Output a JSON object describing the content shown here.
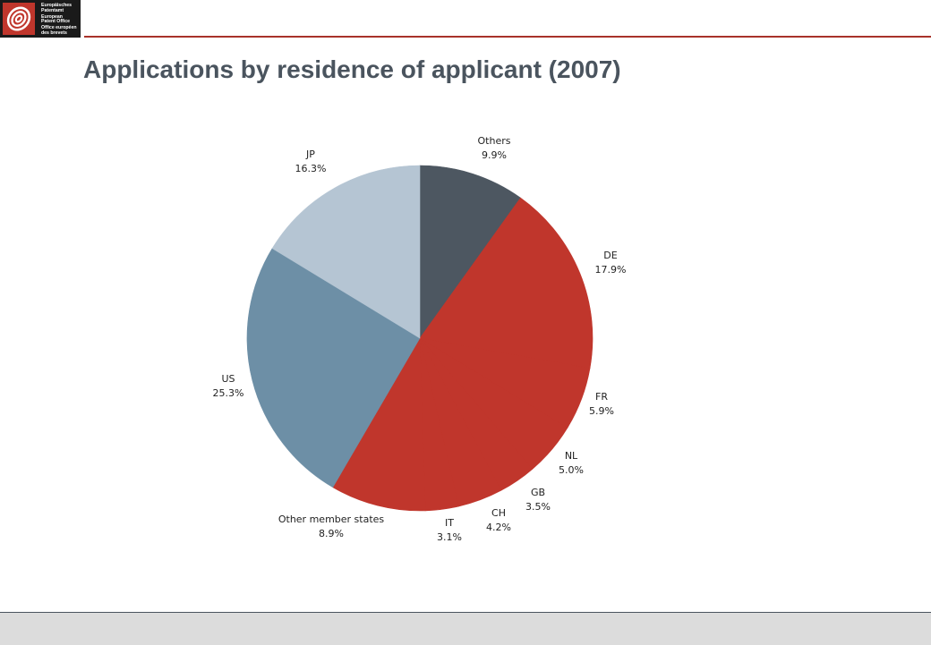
{
  "logo": {
    "text_lines": [
      "Europäisches",
      "Patentamt",
      "European",
      "Patent Office",
      "Office européen",
      "des brevets"
    ],
    "background": "#1a1a1a",
    "icon": "epo-swirl-icon"
  },
  "accent_color": "#a8322a",
  "title": "Applications by residence of applicant (2007)",
  "chart_data": {
    "type": "pie",
    "title": "Applications by residence of applicant (2007)",
    "unit": "%",
    "start": "12 o'clock",
    "direction": "clockwise",
    "slices": [
      {
        "label": "Others",
        "value": 9.9,
        "value_label": "9.9%",
        "color": "#4d5761"
      },
      {
        "label": "DE",
        "value": 17.9,
        "value_label": "17.9%",
        "color": "#c0362c"
      },
      {
        "label": "FR",
        "value": 5.9,
        "value_label": "5.9%",
        "color": "#c0362c"
      },
      {
        "label": "NL",
        "value": 5.0,
        "value_label": "5.0%",
        "color": "#c0362c"
      },
      {
        "label": "GB",
        "value": 3.5,
        "value_label": "3.5%",
        "color": "#c0362c"
      },
      {
        "label": "CH",
        "value": 4.2,
        "value_label": "4.2%",
        "color": "#c0362c"
      },
      {
        "label": "IT",
        "value": 3.1,
        "value_label": "3.1%",
        "color": "#c0362c"
      },
      {
        "label": "Other member states",
        "value": 8.9,
        "value_label": "8.9%",
        "color": "#c0362c"
      },
      {
        "label": "US",
        "value": 25.3,
        "value_label": "25.3%",
        "color": "#6d8fa6"
      },
      {
        "label": "JP",
        "value": 16.3,
        "value_label": "16.3%",
        "color": "#b5c5d3"
      }
    ]
  }
}
